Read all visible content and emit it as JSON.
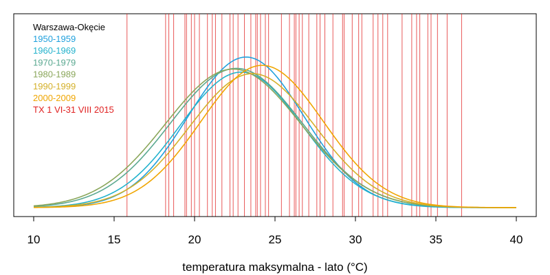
{
  "chart_data": {
    "type": "line",
    "title": "",
    "xlabel": "temperatura maksymalna - lato (°C)",
    "ylabel": "",
    "xlim": [
      10,
      40
    ],
    "x_ticks": [
      10,
      15,
      20,
      25,
      30,
      35,
      40
    ],
    "grid": false,
    "legend_position": "top-left",
    "legend_title": "Warszawa-Okęcie",
    "series": [
      {
        "name": "1950-1959",
        "color": "#1fa0dd",
        "mean": 23.2,
        "sd": 3.6,
        "peak": 1.0
      },
      {
        "name": "1960-1969",
        "color": "#22b2cc",
        "mean": 22.9,
        "sd": 3.8,
        "peak": 0.9
      },
      {
        "name": "1970-1979",
        "color": "#5aa890",
        "mean": 22.6,
        "sd": 4.1,
        "peak": 0.925
      },
      {
        "name": "1980-1989",
        "color": "#8aa65a",
        "mean": 22.4,
        "sd": 4.2,
        "peak": 0.92
      },
      {
        "name": "1990-1999",
        "color": "#d4b028",
        "mean": 23.6,
        "sd": 3.9,
        "peak": 0.89
      },
      {
        "name": "2000-2009",
        "color": "#f0a500",
        "mean": 24.2,
        "sd": 3.8,
        "peak": 0.945
      }
    ],
    "observations": {
      "name": "TX 1 VI-31 VIII 2015",
      "color": "#e02020",
      "values": [
        15.8,
        18.2,
        18.4,
        18.7,
        19.4,
        19.5,
        19.8,
        20.0,
        20.3,
        20.8,
        21.1,
        21.3,
        21.7,
        22.2,
        22.4,
        22.7,
        23.1,
        23.5,
        23.8,
        23.9,
        24.1,
        24.4,
        24.6,
        25.4,
        25.9,
        26.2,
        26.3,
        26.5,
        26.7,
        27.1,
        27.6,
        27.8,
        28.1,
        28.6,
        29.2,
        29.3,
        29.8,
        30.2,
        30.4,
        31.1,
        31.4,
        31.7,
        32.0,
        32.9,
        33.5,
        33.8,
        34.0,
        34.5,
        34.7,
        35.1,
        35.7,
        36.6
      ]
    }
  }
}
